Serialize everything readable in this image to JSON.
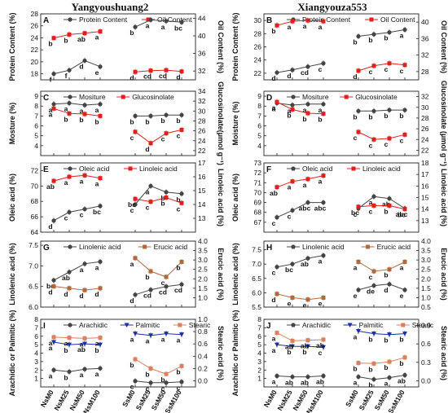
{
  "titles": {
    "left": "Yangyoushuang2",
    "right": "Xiangyouza553"
  },
  "x_tick_labels": [
    "NsM0",
    "NsM25",
    "NsM50",
    "NsM100",
    "SsM0",
    "SsM25",
    "SsM50",
    "SsM100"
  ],
  "colors": {
    "black": "#444444",
    "red": "#e02020",
    "brown": "#b0683c",
    "blue": "#1c2fa0",
    "pink": "#d98060"
  },
  "chart_data": [
    {
      "id": "A",
      "type": "line",
      "ylabel": "Protein Content (%)",
      "ylim": [
        17,
        28
      ],
      "yticks": [
        18,
        20,
        22,
        24,
        26,
        28
      ],
      "y2label": "Oil Content (%)",
      "y2lim": [
        30,
        45
      ],
      "y2ticks": [
        32,
        36,
        40,
        44
      ],
      "legend": [
        "Protein Content",
        "Oil Content"
      ],
      "series": [
        {
          "name": "Protein Content",
          "axis": "left",
          "color": "black",
          "values": [
            18.0,
            18.6,
            20.2,
            19.2,
            25.8,
            27.0,
            26.8,
            26.6
          ],
          "letters": [
            "f",
            "f",
            "d",
            "e",
            "b",
            "a",
            "a",
            "bc"
          ]
        },
        {
          "name": "Oil Content",
          "axis": "right",
          "color": "red",
          "values": [
            39.5,
            40.3,
            40.6,
            41.0,
            31.8,
            32.1,
            32.2,
            31.9
          ],
          "letters": [
            "b",
            "b",
            "ab",
            "a",
            "d",
            "cd",
            "cd",
            "d"
          ]
        }
      ]
    },
    {
      "id": "B",
      "type": "line",
      "ylabel": "Protein Content (%)",
      "ylim": [
        21,
        31
      ],
      "yticks": [
        22,
        24,
        26,
        28,
        30
      ],
      "y2label": "Oil Content (%)",
      "y2lim": [
        26,
        42
      ],
      "y2ticks": [
        28,
        32,
        36,
        40
      ],
      "legend": [
        "Protein Content",
        "Oil Content"
      ],
      "series": [
        {
          "name": "Protein Content",
          "axis": "left",
          "color": "black",
          "values": [
            22.1,
            22.5,
            23.0,
            23.5,
            27.6,
            27.9,
            28.2,
            28.6
          ],
          "letters": [
            "d",
            "d",
            "cd",
            "c",
            "b",
            "b",
            "b",
            "a"
          ]
        },
        {
          "name": "Oil Content",
          "axis": "right",
          "color": "red",
          "values": [
            39.2,
            40.2,
            40.4,
            40.2,
            28.2,
            29.4,
            30.0,
            29.6
          ],
          "letters": [
            "b",
            "a",
            "a",
            "a",
            "d",
            "c",
            "c",
            "c"
          ]
        }
      ]
    },
    {
      "id": "C",
      "type": "line",
      "ylabel": "Mosture (%)",
      "ylim": [
        3,
        9.5
      ],
      "yticks": [
        4,
        5,
        6,
        7,
        8,
        9
      ],
      "y2label": "Glucosinolate(μmol g⁻¹)",
      "y2lim": [
        21,
        34
      ],
      "y2ticks": [
        22,
        24,
        26,
        28,
        30,
        32,
        34
      ],
      "legend": [
        "Mositure",
        "Glucosinolate"
      ],
      "series": [
        {
          "name": "Mositure",
          "axis": "left",
          "color": "black",
          "values": [
            8.2,
            8.3,
            8.1,
            8.2,
            7.0,
            7.0,
            7.1,
            7.1
          ],
          "letters": [
            "a",
            "a",
            "a",
            "a",
            "b",
            "b",
            "b",
            "b"
          ]
        },
        {
          "name": "Glucosinolate",
          "axis": "right",
          "color": "red",
          "values": [
            30.5,
            29.5,
            29.4,
            29.0,
            25.8,
            23.5,
            25.5,
            26.2
          ],
          "letters": [
            "a",
            "b",
            "b",
            "b",
            "c",
            "d",
            "c",
            "c"
          ]
        }
      ]
    },
    {
      "id": "D",
      "type": "line",
      "ylabel": "Moisture (%)",
      "ylim": [
        3,
        9.5
      ],
      "yticks": [
        4,
        5,
        6,
        7,
        8,
        9
      ],
      "y2label": "Glucosinolate (μmol g⁻¹)",
      "y2lim": [
        21,
        33
      ],
      "y2ticks": [
        22,
        24,
        26,
        28,
        30,
        32
      ],
      "legend": [
        "Mositure",
        "Glucosinolate"
      ],
      "series": [
        {
          "name": "Mositure",
          "axis": "left",
          "color": "black",
          "values": [
            8.3,
            8.1,
            8.2,
            8.2,
            7.5,
            7.5,
            7.6,
            7.6
          ],
          "letters": [
            "a",
            "a",
            "a",
            "a",
            "b",
            "b",
            "b",
            "b"
          ]
        },
        {
          "name": "Glucosinolate",
          "axis": "right",
          "color": "red",
          "values": [
            31.0,
            29.6,
            28.9,
            28.8,
            25.4,
            24.0,
            24.2,
            24.9
          ],
          "letters": [
            "a",
            "b",
            "b",
            "b",
            "c",
            "c",
            "c",
            "c"
          ]
        }
      ]
    },
    {
      "id": "E",
      "type": "line",
      "ylabel": "Oleic acid (%)",
      "ylim": [
        64,
        73
      ],
      "yticks": [
        64,
        66,
        68,
        70,
        72
      ],
      "y2label": "Linoleic acid (%)",
      "y2lim": [
        12,
        17
      ],
      "y2ticks": [
        13,
        14,
        15,
        16,
        17
      ],
      "legend": [
        "Oleic acid",
        "Linoleic acid"
      ],
      "series": [
        {
          "name": "Oleic acid",
          "axis": "left",
          "color": "black",
          "values": [
            65.5,
            66.6,
            67.0,
            67.4,
            67.6,
            70.0,
            69.2,
            69.0
          ],
          "letters": [
            "d",
            "c",
            "c",
            "bc",
            "c",
            "a",
            "b",
            "b"
          ]
        },
        {
          "name": "Linoleic acid",
          "axis": "right",
          "color": "red",
          "values": [
            15.7,
            16.0,
            16.1,
            15.9,
            14.4,
            14.2,
            14.5,
            14.1
          ],
          "letters": [
            "ab",
            "a",
            "a",
            "a",
            "bc",
            "c",
            "b",
            "c"
          ]
        }
      ]
    },
    {
      "id": "F",
      "type": "line",
      "ylabel": "Oleic acid (%)",
      "ylim": [
        66,
        73
      ],
      "yticks": [
        67,
        68,
        69,
        70,
        71,
        72,
        73
      ],
      "y2label": "Linoleic acid (%)",
      "y2lim": [
        12,
        18
      ],
      "y2ticks": [
        13,
        14,
        15,
        16,
        17,
        18
      ],
      "legend": [
        "Oleic acid",
        "Linoleic acid"
      ],
      "series": [
        {
          "name": "Oleic acid",
          "axis": "left",
          "color": "black",
          "values": [
            67.5,
            68.2,
            69.0,
            69.0,
            68.4,
            69.6,
            69.4,
            68.4
          ],
          "letters": [
            "c",
            "c",
            "abc",
            "abc",
            "c",
            "a",
            "ab",
            "abc"
          ]
        },
        {
          "name": "Linoleic acid",
          "axis": "right",
          "color": "red",
          "values": [
            15.9,
            16.4,
            16.6,
            16.9,
            14.2,
            14.3,
            14.3,
            14.0
          ],
          "letters": [
            "ab",
            "a",
            "a",
            "a",
            "bc",
            "c",
            "b",
            "bc"
          ]
        }
      ]
    },
    {
      "id": "G",
      "type": "line",
      "ylabel": "Linolenic acid (%)",
      "ylim": [
        6.0,
        7.6
      ],
      "yticks": [
        6.0,
        6.5,
        7.0,
        7.5
      ],
      "y2label": "Erucic acid (%)",
      "y2lim": [
        0.5,
        4.0
      ],
      "y2ticks": [
        1.0,
        1.5,
        2.0,
        2.5,
        3.0,
        3.5,
        4.0
      ],
      "legend": [
        "Linolenic acid",
        "Erucic acid"
      ],
      "series": [
        {
          "name": "Linolenic acid",
          "axis": "left",
          "color": "black",
          "values": [
            6.65,
            6.85,
            7.05,
            7.1,
            6.3,
            6.42,
            6.5,
            6.55
          ],
          "letters": [
            "bc",
            "ab",
            "a",
            "a",
            "d",
            "cd",
            "cd",
            "cd"
          ]
        },
        {
          "name": "Erucic acid",
          "axis": "right",
          "color": "brown",
          "values": [
            1.6,
            1.5,
            1.4,
            1.5,
            3.1,
            2.4,
            2.1,
            2.9
          ],
          "letters": [
            "d",
            "d",
            "d",
            "d",
            "a",
            "b",
            "c",
            "b"
          ]
        }
      ]
    },
    {
      "id": "H",
      "type": "line",
      "ylabel": "Linolenic acid (%)",
      "ylim": [
        5.5,
        7.8
      ],
      "yticks": [
        5.5,
        6.0,
        6.5,
        7.0,
        7.5
      ],
      "y2label": "Erucic acid (%)",
      "y2lim": [
        0.5,
        4.0
      ],
      "y2ticks": [
        0.5,
        1.0,
        1.5,
        2.0,
        2.5,
        3.0,
        3.5,
        4.0
      ],
      "legend": [
        "Linolenic acid",
        "Erucic acid"
      ],
      "series": [
        {
          "name": "Linolenic acid",
          "axis": "left",
          "color": "black",
          "values": [
            6.9,
            7.0,
            7.2,
            7.3,
            6.1,
            6.25,
            6.3,
            6.1
          ],
          "letters": [
            "c",
            "bc",
            "ab",
            "a",
            "e",
            "de",
            "d",
            "e"
          ]
        },
        {
          "name": "Erucic acid",
          "axis": "right",
          "color": "brown",
          "values": [
            1.2,
            1.0,
            0.9,
            1.0,
            2.9,
            2.4,
            2.5,
            2.9
          ],
          "letters": [
            "d",
            "e",
            "e",
            "e",
            "a",
            "c",
            "b",
            "a"
          ]
        }
      ]
    },
    {
      "id": "I",
      "type": "line",
      "ylabel": "Arachidic or Palmitic (%)",
      "ylim": [
        0,
        8
      ],
      "yticks": [
        1,
        2,
        3,
        4,
        5,
        6,
        7,
        8
      ],
      "y2label": "Stearic acid (%)",
      "y2lim": [
        -0.1,
        1.0
      ],
      "y2ticks": [
        0.0,
        0.2,
        0.4,
        0.6,
        0.8,
        1.0
      ],
      "legend": [
        "Arachidic",
        "Palmitic",
        "Stearic"
      ],
      "series": [
        {
          "name": "Arachidic",
          "axis": "left",
          "color": "black",
          "values": [
            2.0,
            1.8,
            2.1,
            2.2,
            0.7,
            0.5,
            0.5,
            0.6
          ],
          "letters": [
            "a",
            "b",
            "a",
            "a",
            "c",
            "c",
            "c",
            "c"
          ]
        },
        {
          "name": "Palmitic",
          "axis": "left",
          "color": "blue",
          "values": [
            5.3,
            5.0,
            5.1,
            5.0,
            6.3,
            6.1,
            6.3,
            6.2
          ],
          "letters": [
            "a",
            "b",
            "ab",
            "b",
            "a",
            "a",
            "a",
            "a"
          ]
        },
        {
          "name": "Stearic",
          "axis": "right",
          "color": "pink",
          "values": [
            0.71,
            0.7,
            0.69,
            0.7,
            0.35,
            0.2,
            0.11,
            0.24
          ],
          "letters": [
            "a",
            "a",
            "a",
            "a",
            "b",
            "b",
            "b",
            "b"
          ]
        }
      ]
    },
    {
      "id": "J",
      "type": "line",
      "ylabel": "Arachidic or Palmitic (%)",
      "ylim": [
        0,
        8
      ],
      "yticks": [
        1,
        2,
        3,
        4,
        5,
        6,
        7,
        8
      ],
      "y2label": "Stearic acid (%)",
      "y2lim": [
        -0.1,
        1.0
      ],
      "y2ticks": [
        0.0,
        0.3,
        0.6,
        0.9
      ],
      "legend": [
        "Arachidic",
        "Palmitic",
        "Stearic"
      ],
      "series": [
        {
          "name": "Arachidic",
          "axis": "left",
          "color": "black",
          "values": [
            1.3,
            1.2,
            1.2,
            1.3,
            1.2,
            0.9,
            1.1,
            1.4
          ],
          "letters": [
            "a",
            "ab",
            "ab",
            "ab",
            "a",
            "b",
            "a",
            "ab"
          ]
        },
        {
          "name": "Palmitic",
          "axis": "left",
          "color": "blue",
          "values": [
            5.0,
            4.8,
            4.8,
            4.7,
            6.6,
            6.3,
            6.2,
            6.3
          ],
          "letters": [
            "a",
            "b",
            "b",
            "c",
            "a",
            "b",
            "b",
            "b"
          ]
        },
        {
          "name": "Stearic",
          "axis": "right",
          "color": "pink",
          "values": [
            0.78,
            0.65,
            0.66,
            0.67,
            0.29,
            0.28,
            0.31,
            0.38
          ],
          "letters": [
            "a",
            "ab",
            "ab",
            "ab",
            "b",
            "b",
            "b",
            "b"
          ]
        }
      ]
    }
  ]
}
